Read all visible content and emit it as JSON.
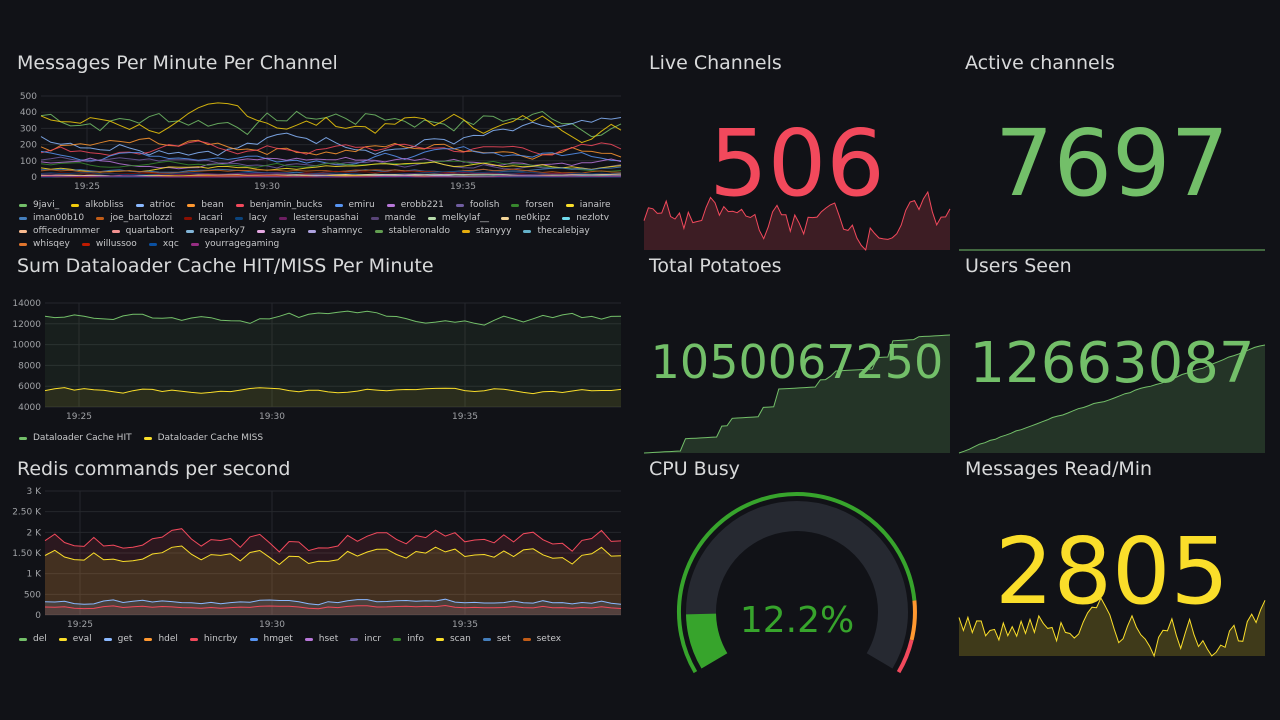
{
  "panels": {
    "messages": {
      "title": "Messages Per Minute Per Channel",
      "legend": [
        {
          "name": "9javi_",
          "color": "#73bf69"
        },
        {
          "name": "alkobliss",
          "color": "#f2cc0c"
        },
        {
          "name": "atrioc",
          "color": "#8ab8ff"
        },
        {
          "name": "bean",
          "color": "#ff9830"
        },
        {
          "name": "benjamin_bucks",
          "color": "#f2495c"
        },
        {
          "name": "emiru",
          "color": "#5794f2"
        },
        {
          "name": "erobb221",
          "color": "#b877d9"
        },
        {
          "name": "foolish",
          "color": "#705da0"
        },
        {
          "name": "forsen",
          "color": "#37872d"
        },
        {
          "name": "ianaire",
          "color": "#fade2a"
        },
        {
          "name": "iman00b10",
          "color": "#447ebc"
        },
        {
          "name": "joe_bartolozzi",
          "color": "#c15c17"
        },
        {
          "name": "lacari",
          "color": "#890f02"
        },
        {
          "name": "lacy",
          "color": "#0a437c"
        },
        {
          "name": "lestersupashai",
          "color": "#6d1f62"
        },
        {
          "name": "mande",
          "color": "#584477"
        },
        {
          "name": "melkylaf__",
          "color": "#b7dbab"
        },
        {
          "name": "ne0kipz",
          "color": "#f4d598"
        },
        {
          "name": "nezlotv",
          "color": "#70dbed"
        },
        {
          "name": "officedrummer",
          "color": "#f9ba8f"
        },
        {
          "name": "quartabort",
          "color": "#f29191"
        },
        {
          "name": "reaperky7",
          "color": "#82b5d8"
        },
        {
          "name": "sayra",
          "color": "#e5a8e2"
        },
        {
          "name": "shamnyc",
          "color": "#aea2e0"
        },
        {
          "name": "stableronaldo",
          "color": "#629e51"
        },
        {
          "name": "stanyyy",
          "color": "#e5ac0e"
        },
        {
          "name": "thecalebjay",
          "color": "#64b0c8"
        },
        {
          "name": "whisqey",
          "color": "#e0752d"
        },
        {
          "name": "willussoo",
          "color": "#bf1b00"
        },
        {
          "name": "xqc",
          "color": "#0a50a1"
        },
        {
          "name": "yourragegaming",
          "color": "#962d82"
        }
      ],
      "y_ticks": [
        "0",
        "100",
        "200",
        "300",
        "400",
        "500"
      ],
      "x_ticks": [
        "19:25",
        "19:30",
        "19:35"
      ]
    },
    "dataloader": {
      "title": "Sum Dataloader Cache HIT/MISS Per Minute",
      "legend": [
        {
          "name": "Dataloader Cache HIT",
          "color": "#73bf69"
        },
        {
          "name": "Dataloader Cache MISS",
          "color": "#fade2a"
        }
      ],
      "y_ticks": [
        "4000",
        "6000",
        "8000",
        "10000",
        "12000",
        "14000"
      ],
      "x_ticks": [
        "19:25",
        "19:30",
        "19:35"
      ]
    },
    "redis": {
      "title": "Redis commands per second",
      "legend": [
        {
          "name": "del",
          "color": "#73bf69"
        },
        {
          "name": "eval",
          "color": "#fade2a"
        },
        {
          "name": "get",
          "color": "#8ab8ff"
        },
        {
          "name": "hdel",
          "color": "#ff9830"
        },
        {
          "name": "hincrby",
          "color": "#f2495c"
        },
        {
          "name": "hmget",
          "color": "#5794f2"
        },
        {
          "name": "hset",
          "color": "#b877d9"
        },
        {
          "name": "incr",
          "color": "#705da0"
        },
        {
          "name": "info",
          "color": "#37872d"
        },
        {
          "name": "scan",
          "color": "#fade2a"
        },
        {
          "name": "set",
          "color": "#447ebc"
        },
        {
          "name": "setex",
          "color": "#c15c17"
        }
      ],
      "y_ticks": [
        "0",
        "500",
        "1 K",
        "1.50 K",
        "2 K",
        "2.50 K",
        "3 K"
      ],
      "x_ticks": [
        "19:25",
        "19:30",
        "19:35"
      ]
    },
    "live_channels": {
      "title": "Live Channels",
      "value": "506",
      "color": "#f2495c"
    },
    "active_channels": {
      "title": "Active channels",
      "value": "7697",
      "color": "#73bf69"
    },
    "total_potatoes": {
      "title": "Total Potatoes",
      "value": "1050067250",
      "color": "#73bf69"
    },
    "users_seen": {
      "title": "Users Seen",
      "value": "12663087",
      "color": "#73bf69"
    },
    "cpu_busy": {
      "title": "CPU Busy",
      "value": "12.2%",
      "percent": 12.2,
      "color": "#37a42c"
    },
    "messages_read": {
      "title": "Messages Read/Min",
      "value": "2805",
      "color": "#fade2a"
    }
  }
}
